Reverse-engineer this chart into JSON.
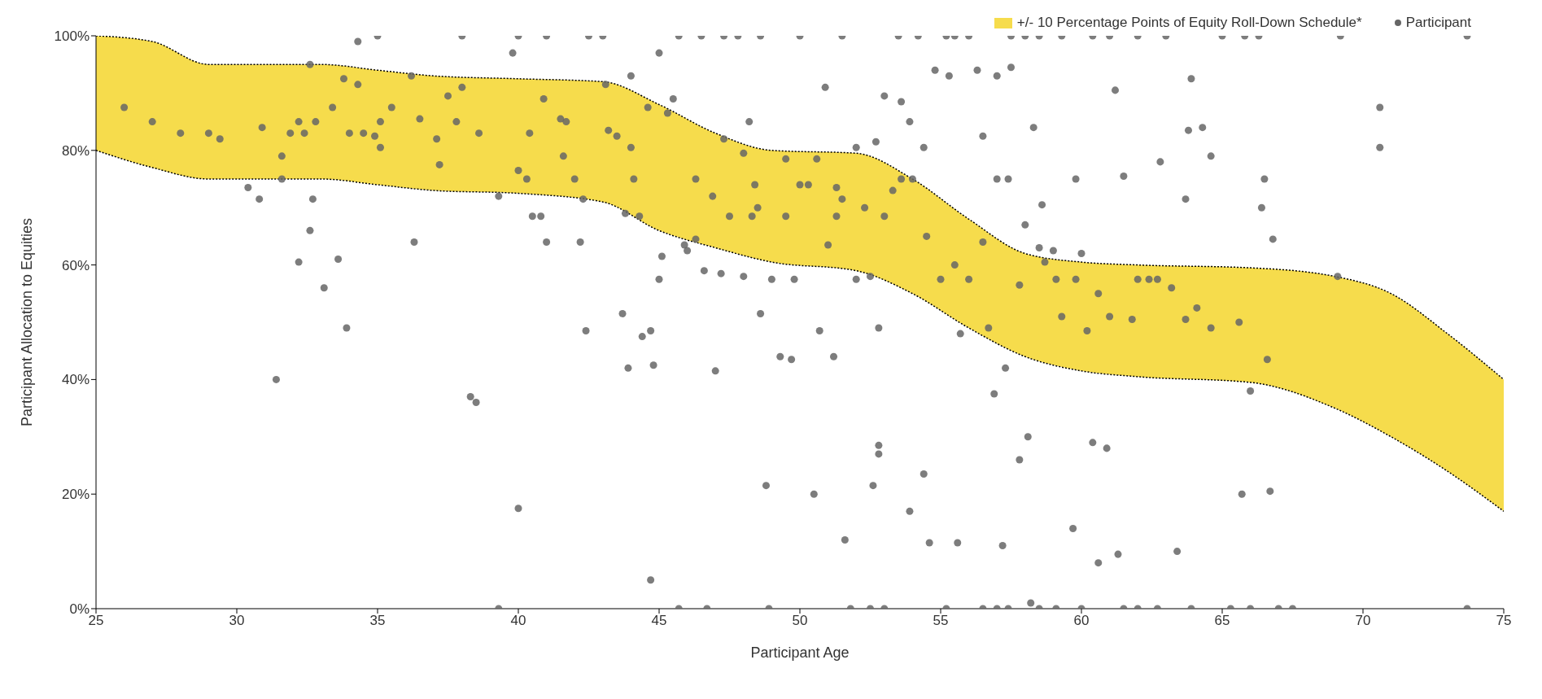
{
  "chart_data": {
    "type": "scatter",
    "xlabel": "Participant Age",
    "ylabel": "Participant Allocation to Equities",
    "xlim": [
      25,
      75
    ],
    "xticks": [
      25,
      30,
      35,
      40,
      45,
      50,
      55,
      60,
      65,
      70,
      75
    ],
    "ylim": [
      0,
      100
    ],
    "yticks": [
      {
        "value": 0,
        "label": "0%"
      },
      {
        "value": 20,
        "label": "20%"
      },
      {
        "value": 40,
        "label": "40%"
      },
      {
        "value": 60,
        "label": "60%"
      },
      {
        "value": 80,
        "label": "80%"
      },
      {
        "value": 100,
        "label": "100%"
      }
    ],
    "grid": false,
    "legend": "top right",
    "series": [
      {
        "type": "area",
        "name": "+/- 10 Percentage Points of Equity Roll-Down Schedule*",
        "color": "#f6dc4c",
        "line_style": "dotted",
        "x": [
          25,
          27,
          29,
          31,
          33,
          35,
          37,
          40,
          43,
          45,
          47,
          49,
          52,
          54,
          56,
          58,
          60,
          62,
          66,
          69,
          71,
          73,
          75
        ],
        "values": [
          100,
          99,
          95,
          95,
          95,
          94,
          93,
          92.5,
          92,
          88,
          83,
          80,
          79.5,
          75,
          68,
          62,
          60.5,
          60,
          59.5,
          58,
          55,
          48,
          40
        ]
      },
      {
        "type": "line",
        "color": "#000000",
        "line_style": "dotted",
        "x": [
          25,
          27,
          29,
          31,
          33,
          35,
          37,
          40,
          43,
          45,
          47,
          49,
          52,
          54,
          56,
          58,
          60,
          62,
          66,
          69,
          71,
          73,
          75
        ],
        "values": [
          80,
          77,
          75,
          75,
          75,
          74,
          73,
          72.5,
          71,
          66,
          63,
          60.5,
          59,
          55,
          49,
          44,
          41.5,
          40.5,
          39.5,
          35,
          30,
          24,
          17
        ]
      },
      {
        "name": "Participant",
        "color": "#666666",
        "marker": "circle",
        "x": [
          26,
          27,
          28,
          29,
          29.4,
          30.4,
          30.8,
          30.9,
          31.4,
          31.6,
          31.6,
          31.9,
          32.2,
          32.2,
          32.4,
          32.6,
          32.6,
          32.7,
          32.8,
          33.1,
          33.4,
          33.6,
          33.8,
          33.9,
          34,
          34.3,
          34.3,
          34.5,
          34.9,
          35,
          35.1,
          35.1,
          35.5,
          36.2,
          36.3,
          36.5,
          37.1,
          37.2,
          37.5,
          37.8,
          38,
          38,
          38.3,
          38.5,
          38.6,
          39.3,
          39.3,
          39.8,
          40,
          40,
          40,
          40.3,
          40.4,
          40.5,
          40.8,
          40.9,
          41,
          41,
          41.5,
          41.6,
          41.7,
          42,
          42.2,
          42.3,
          42.4,
          42.5,
          43,
          43.1,
          43.2,
          43.5,
          43.7,
          43.8,
          43.9,
          44,
          44,
          44.1,
          44.4,
          44.3,
          44.6,
          44.7,
          44.7,
          44.8,
          45,
          45,
          45.1,
          45.3,
          45.5,
          45.7,
          45.7,
          45.9,
          46,
          46.3,
          46.6,
          46.7,
          46.9,
          47,
          47.3,
          47.3,
          48,
          48,
          48.2,
          48.4,
          48.5,
          48.6,
          48.8,
          48.9,
          49,
          49.3,
          49.5,
          49.7,
          49.8,
          50,
          50,
          50.5,
          50.6,
          50.7,
          50.9,
          51,
          51.2,
          51.3,
          51.5,
          51.6,
          51.8,
          52,
          52,
          52.6,
          52.7,
          52.8,
          52.8,
          52.8,
          53,
          53.3,
          53.6,
          53.9,
          53.9,
          54.2,
          54.4,
          54.5,
          54.6,
          54.8,
          55.2,
          55.3,
          55.6,
          55.7,
          56,
          56.3,
          56.5,
          56.7,
          56.9,
          57,
          57.2,
          57.3,
          57.4,
          57.5,
          57.8,
          58,
          58.1,
          58.2,
          58.3,
          58.6,
          58.7,
          59.1,
          59.1,
          59.3,
          59.7,
          59.8,
          60,
          60.2,
          60.4,
          60.6,
          60.9,
          61.2,
          61.3,
          61.5,
          62,
          62.4,
          62.7,
          62.8,
          63.4,
          63.7,
          63.9,
          63.8,
          64.3,
          64.6,
          64.6,
          65,
          65.6,
          65.7,
          66,
          66.4,
          66.6,
          66.5,
          66.7,
          66.8,
          67,
          69.1,
          69.2,
          70.6,
          70.6,
          73.7,
          73.7,
          54,
          54.4,
          55,
          55.5,
          56,
          56.5,
          57,
          57.4,
          57.8,
          58,
          58.5,
          59,
          59.3,
          59.8,
          60.6,
          61,
          61.8,
          62,
          62.7,
          63.2,
          63.7,
          64.1,
          65.3,
          65.8,
          66.3,
          67.5,
          52.3,
          51.5,
          53,
          53.6,
          52.5,
          51.3,
          50.3,
          49.5,
          48.3,
          47.5,
          46.3,
          47.2,
          60.4,
          61,
          62,
          63,
          56.5,
          57,
          58.5,
          60,
          61.5,
          63.9,
          66,
          48.6,
          47.8,
          46.5,
          53.5,
          55.5,
          57.5,
          58.5,
          53,
          52.5,
          55.2
        ],
        "values": [
          87.5,
          85,
          83,
          83,
          82,
          73.5,
          71.5,
          84,
          40,
          79,
          75,
          83,
          60.5,
          85,
          83,
          95,
          66,
          71.5,
          85,
          56,
          87.5,
          61,
          92.5,
          49,
          83,
          99,
          91.5,
          83,
          82.5,
          100,
          85,
          80.5,
          87.5,
          93,
          64,
          85.5,
          82,
          77.5,
          89.5,
          85,
          100,
          91,
          37,
          36,
          83,
          0,
          72,
          97,
          17.5,
          76.5,
          100,
          75,
          83,
          68.5,
          68.5,
          89,
          64,
          100,
          85.5,
          79,
          85,
          75,
          64,
          71.5,
          48.5,
          100,
          100,
          91.5,
          83.5,
          82.5,
          51.5,
          69,
          42,
          93,
          80.5,
          75,
          47.5,
          68.5,
          87.5,
          48.5,
          5,
          42.5,
          97,
          57.5,
          61.5,
          86.5,
          89,
          100,
          0,
          63.5,
          62.5,
          75,
          59,
          0,
          72,
          41.5,
          82,
          100,
          79.5,
          58,
          85,
          74,
          70,
          51.5,
          21.5,
          0,
          57.5,
          44,
          78.5,
          43.5,
          57.5,
          74,
          100,
          20,
          78.5,
          48.5,
          91,
          63.5,
          44,
          73.5,
          100,
          12,
          0,
          80.5,
          57.5,
          21.5,
          81.5,
          49,
          28.5,
          27,
          89.5,
          73,
          88.5,
          85,
          17,
          100,
          23.5,
          65,
          11.5,
          94,
          100,
          93,
          11.5,
          48,
          100,
          94,
          82.5,
          49,
          37.5,
          93,
          11,
          42,
          0,
          94.5,
          26,
          100,
          30,
          1,
          84,
          70.5,
          60.5,
          57.5,
          0,
          100,
          14,
          75,
          62,
          48.5,
          29,
          8,
          28,
          90.5,
          9.5,
          75.5,
          0,
          57.5,
          0,
          78,
          10,
          71.5,
          92.5,
          83.5,
          84,
          79,
          49,
          100,
          50,
          20,
          38,
          70,
          43.5,
          75,
          20.5,
          64.5,
          0,
          58,
          100,
          80.5,
          87.5,
          100,
          0,
          75,
          80.5,
          57.5,
          60,
          57.5,
          64,
          75,
          75,
          56.5,
          67,
          63,
          62.5,
          51,
          57.5,
          55,
          51,
          50.5,
          57.5,
          57.5,
          56,
          50.5,
          52.5,
          0,
          100,
          100,
          0,
          70,
          71.5,
          68.5,
          75,
          58,
          68.5,
          74,
          68.5,
          68.5,
          68.5,
          64.5,
          58.5,
          100,
          100,
          100,
          100,
          0,
          0,
          0,
          0,
          0,
          0,
          0,
          100,
          100,
          100,
          100,
          100,
          100,
          100,
          0,
          0,
          0
        ]
      }
    ]
  }
}
